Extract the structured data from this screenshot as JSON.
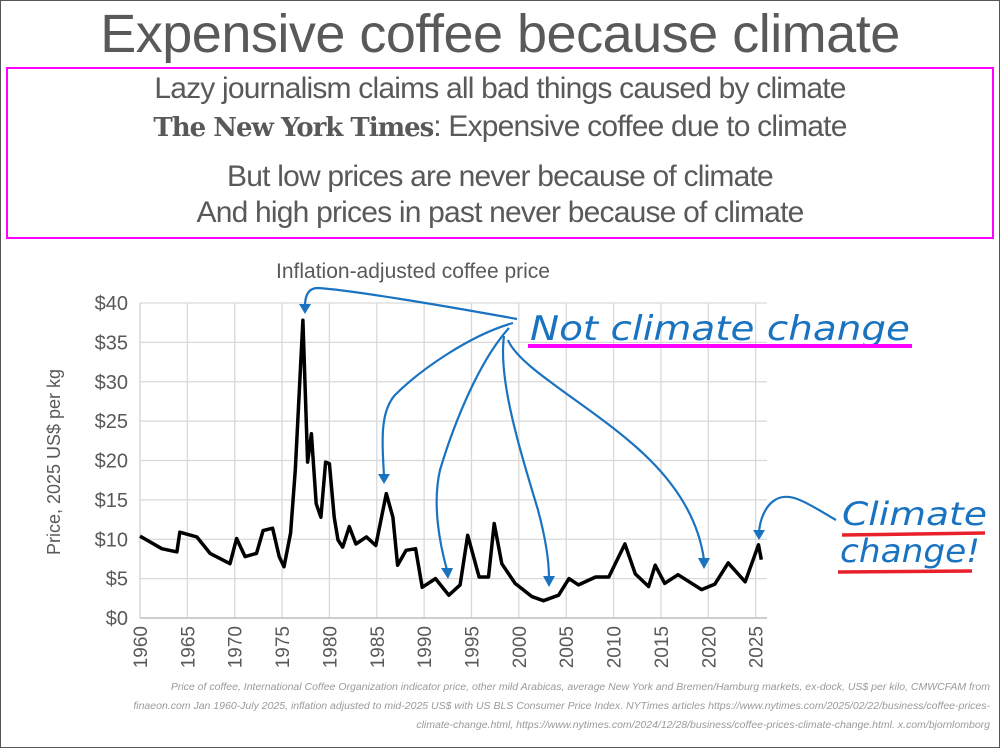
{
  "title": "Expensive coffee because climate",
  "box": {
    "line1": "Lazy journalism claims all bad things caused by climate",
    "nyt_logo": "The New York Times",
    "line2_rest": ": Expensive coffee due to climate",
    "line3": "But low prices are never because of climate",
    "line4": "And high prices in past never because of climate"
  },
  "annotations": {
    "inflation_label": "Inflation-adjusted coffee price",
    "not_climate": "Not climate change",
    "climate_line1": "Climate",
    "climate_line2": "change!"
  },
  "colors": {
    "arrow": "#1a73c0",
    "magenta": "#ff00ff",
    "red": "#e8202a",
    "line": "#000000",
    "grid": "#d9d9d9"
  },
  "footer": {
    "line1": "Price of coffee, International Coffee Organization indicator price, other mild Arabicas, average New York and Bremen/Hamburg markets, ex-dock, US$ per kilo, CMWCFAM from",
    "line2": "finaeon.com Jan 1960-July 2025, inflation adjusted to mid-2025 US$ with US BLS Consumer Price Index. NYTimes articles https://www.nytimes.com/2025/02/22/business/coffee-prices-",
    "line3": "climate-change.html, https://www.nytimes.com/2024/12/28/business/coffee-prices-climate-change.html. x.com/bjornlomborg"
  },
  "chart_data": {
    "type": "line",
    "title": "Inflation-adjusted coffee price",
    "xlabel": "",
    "ylabel": "Price, 2025 US$ per kg",
    "xlim": [
      1960,
      2026.2
    ],
    "ylim": [
      0,
      40
    ],
    "grid": true,
    "x_ticks": [
      "1960",
      "1965",
      "1970",
      "1975",
      "1980",
      "1985",
      "1990",
      "1995",
      "2000",
      "2005",
      "2010",
      "2015",
      "2020",
      "2025"
    ],
    "y_ticks": [
      "$0",
      "$5",
      "$10",
      "$15",
      "$20",
      "$25",
      "$30",
      "$35",
      "$40"
    ],
    "series": [
      {
        "name": "Coffee price",
        "x": [
          1960,
          1962.3,
          1963.9,
          1964.2,
          1966,
          1967.4,
          1969.5,
          1970.2,
          1971.1,
          1972.3,
          1973,
          1974,
          1974.7,
          1975.2,
          1975.9,
          1976.4,
          1977.2,
          1977.7,
          1978.1,
          1978.6,
          1979.1,
          1979.6,
          1980,
          1980.5,
          1980.9,
          1981.4,
          1982.1,
          1982.8,
          1983.9,
          1984.9,
          1986,
          1986.7,
          1987.2,
          1988.1,
          1989.1,
          1989.8,
          1991.2,
          1992.6,
          1993.8,
          1994.6,
          1995.8,
          1996.8,
          1997.4,
          1998.2,
          1999.6,
          2001.4,
          2002.6,
          2004.2,
          2005.3,
          2006.3,
          2008.1,
          2009.5,
          2011.2,
          2012.3,
          2013.7,
          2014.4,
          2015.4,
          2016.8,
          2019.3,
          2020.7,
          2022.1,
          2023.9,
          2025.3,
          2025.6
        ],
        "values": [
          10.4,
          8.8,
          8.4,
          10.9,
          10.3,
          8.2,
          6.9,
          10.1,
          7.8,
          8.2,
          11.1,
          11.4,
          7.8,
          6.5,
          10.8,
          18.8,
          37.8,
          19.8,
          23.4,
          14.5,
          12.8,
          19.8,
          19.6,
          12.8,
          9.9,
          9.0,
          11.6,
          9.4,
          10.3,
          9.2,
          15.8,
          12.8,
          6.7,
          8.6,
          8.8,
          3.9,
          5.0,
          2.9,
          4.2,
          10.5,
          5.2,
          5.2,
          12.0,
          6.9,
          4.4,
          2.7,
          2.2,
          2.9,
          5.0,
          4.2,
          5.2,
          5.2,
          9.4,
          5.6,
          4.0,
          6.7,
          4.4,
          5.5,
          3.6,
          4.3,
          7.0,
          4.6,
          9.3,
          7.4
        ]
      }
    ]
  }
}
